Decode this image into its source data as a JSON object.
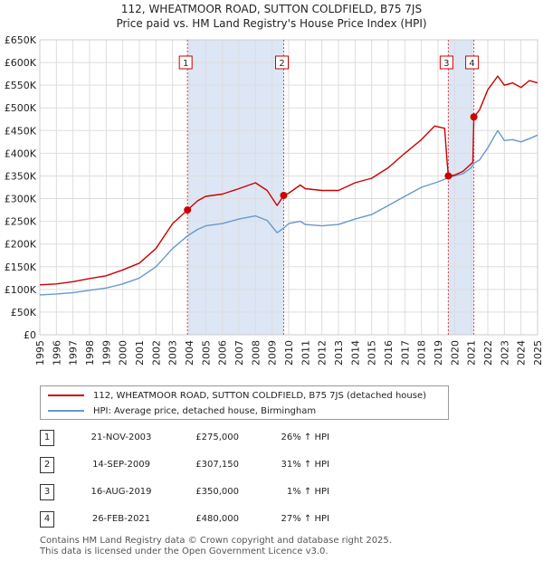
{
  "title_line1": "112, WHEATMOOR ROAD, SUTTON COLDFIELD, B75 7JS",
  "title_line2": "Price paid vs. HM Land Registry's House Price Index (HPI)",
  "legend": {
    "property": "112, WHEATMOOR ROAD, SUTTON COLDFIELD, B75 7JS (detached house)",
    "hpi": "HPI: Average price, detached house, Birmingham"
  },
  "transactions": [
    {
      "num": "1",
      "date": "21-NOV-2003",
      "price": "£275,000",
      "hpi": "26% ↑ HPI"
    },
    {
      "num": "2",
      "date": "14-SEP-2009",
      "price": "£307,150",
      "hpi": "31% ↑ HPI"
    },
    {
      "num": "3",
      "date": "16-AUG-2019",
      "price": "£350,000",
      "hpi": "1% ↑ HPI"
    },
    {
      "num": "4",
      "date": "26-FEB-2021",
      "price": "£480,000",
      "hpi": "27% ↑ HPI"
    }
  ],
  "footer_line1": "Contains HM Land Registry data © Crown copyright and database right 2025.",
  "footer_line2": "This data is licensed under the Open Government Licence v3.0.",
  "colors": {
    "property": "#cc0000",
    "hpi": "#6699cc",
    "shade": "#dde6f5",
    "grid": "#dddddd"
  },
  "chart_data": {
    "type": "line",
    "title": "112, WHEATMOOR ROAD, SUTTON COLDFIELD, B75 7JS",
    "subtitle": "Price paid vs. HM Land Registry's House Price Index (HPI)",
    "xlabel": "",
    "ylabel": "",
    "xlim": [
      1995,
      2025
    ],
    "ylim": [
      0,
      650000
    ],
    "grid": true,
    "legend_position": "below",
    "x_ticks": [
      "1995",
      "1996",
      "1997",
      "1998",
      "1999",
      "2000",
      "2001",
      "2002",
      "2003",
      "2004",
      "2005",
      "2006",
      "2007",
      "2008",
      "2009",
      "2010",
      "2011",
      "2012",
      "2013",
      "2014",
      "2015",
      "2016",
      "2017",
      "2018",
      "2019",
      "2020",
      "2021",
      "2022",
      "2023",
      "2024",
      "2025"
    ],
    "y_ticks": [
      {
        "value": 0,
        "label": "£0"
      },
      {
        "value": 50000,
        "label": "£50K"
      },
      {
        "value": 100000,
        "label": "£100K"
      },
      {
        "value": 150000,
        "label": "£150K"
      },
      {
        "value": 200000,
        "label": "£200K"
      },
      {
        "value": 250000,
        "label": "£250K"
      },
      {
        "value": 300000,
        "label": "£300K"
      },
      {
        "value": 350000,
        "label": "£350K"
      },
      {
        "value": 400000,
        "label": "£400K"
      },
      {
        "value": 450000,
        "label": "£450K"
      },
      {
        "value": 500000,
        "label": "£500K"
      },
      {
        "value": 550000,
        "label": "£550K"
      },
      {
        "value": 600000,
        "label": "£600K"
      },
      {
        "value": 650000,
        "label": "£650K"
      }
    ],
    "shaded_ranges": [
      [
        2003.9,
        2009.7
      ],
      [
        2019.6,
        2021.15
      ]
    ],
    "series": [
      {
        "name": "112, WHEATMOOR ROAD, SUTTON COLDFIELD, B75 7JS (detached house)",
        "color": "#cc0000",
        "points": [
          [
            1995,
            110000
          ],
          [
            1996,
            112000
          ],
          [
            1997,
            117000
          ],
          [
            1998,
            124000
          ],
          [
            1999,
            130000
          ],
          [
            2000,
            143000
          ],
          [
            2001,
            158000
          ],
          [
            2002,
            190000
          ],
          [
            2003,
            245000
          ],
          [
            2003.9,
            275000
          ],
          [
            2004.5,
            295000
          ],
          [
            2005,
            305000
          ],
          [
            2006,
            310000
          ],
          [
            2007,
            322000
          ],
          [
            2008,
            335000
          ],
          [
            2008.7,
            318000
          ],
          [
            2009.3,
            285000
          ],
          [
            2009.7,
            307150
          ],
          [
            2010,
            312000
          ],
          [
            2010.7,
            330000
          ],
          [
            2011,
            322000
          ],
          [
            2012,
            318000
          ],
          [
            2013,
            318000
          ],
          [
            2014,
            335000
          ],
          [
            2015,
            345000
          ],
          [
            2016,
            368000
          ],
          [
            2017,
            400000
          ],
          [
            2018,
            430000
          ],
          [
            2018.8,
            460000
          ],
          [
            2019.4,
            455000
          ],
          [
            2019.55,
            380000
          ],
          [
            2019.62,
            350000
          ],
          [
            2020,
            352000
          ],
          [
            2020.5,
            360000
          ],
          [
            2021.1,
            380000
          ],
          [
            2021.16,
            480000
          ],
          [
            2021.5,
            495000
          ],
          [
            2022,
            540000
          ],
          [
            2022.6,
            570000
          ],
          [
            2023,
            550000
          ],
          [
            2023.5,
            555000
          ],
          [
            2024,
            545000
          ],
          [
            2024.5,
            560000
          ],
          [
            2025,
            555000
          ]
        ]
      },
      {
        "name": "HPI: Average price, detached house, Birmingham",
        "color": "#6699cc",
        "points": [
          [
            1995,
            88000
          ],
          [
            1996,
            90000
          ],
          [
            1997,
            93000
          ],
          [
            1998,
            98000
          ],
          [
            1999,
            103000
          ],
          [
            2000,
            112000
          ],
          [
            2001,
            125000
          ],
          [
            2002,
            150000
          ],
          [
            2003,
            190000
          ],
          [
            2003.9,
            218000
          ],
          [
            2004.5,
            232000
          ],
          [
            2005,
            240000
          ],
          [
            2006,
            245000
          ],
          [
            2007,
            255000
          ],
          [
            2008,
            262000
          ],
          [
            2008.7,
            252000
          ],
          [
            2009.3,
            225000
          ],
          [
            2009.7,
            235000
          ],
          [
            2010,
            245000
          ],
          [
            2010.7,
            250000
          ],
          [
            2011,
            243000
          ],
          [
            2012,
            240000
          ],
          [
            2013,
            243000
          ],
          [
            2014,
            255000
          ],
          [
            2015,
            265000
          ],
          [
            2016,
            285000
          ],
          [
            2017,
            305000
          ],
          [
            2018,
            325000
          ],
          [
            2019,
            337000
          ],
          [
            2019.62,
            346000
          ],
          [
            2020,
            350000
          ],
          [
            2020.5,
            355000
          ],
          [
            2021,
            368000
          ],
          [
            2021.16,
            378000
          ],
          [
            2021.5,
            385000
          ],
          [
            2022,
            412000
          ],
          [
            2022.6,
            450000
          ],
          [
            2023,
            428000
          ],
          [
            2023.5,
            430000
          ],
          [
            2024,
            425000
          ],
          [
            2024.5,
            432000
          ],
          [
            2025,
            440000
          ]
        ]
      }
    ],
    "sale_markers": [
      {
        "label": "1",
        "x": 2003.9,
        "y": 275000
      },
      {
        "label": "2",
        "x": 2009.7,
        "y": 307150
      },
      {
        "label": "3",
        "x": 2019.62,
        "y": 350000
      },
      {
        "label": "4",
        "x": 2021.16,
        "y": 480000
      }
    ]
  }
}
